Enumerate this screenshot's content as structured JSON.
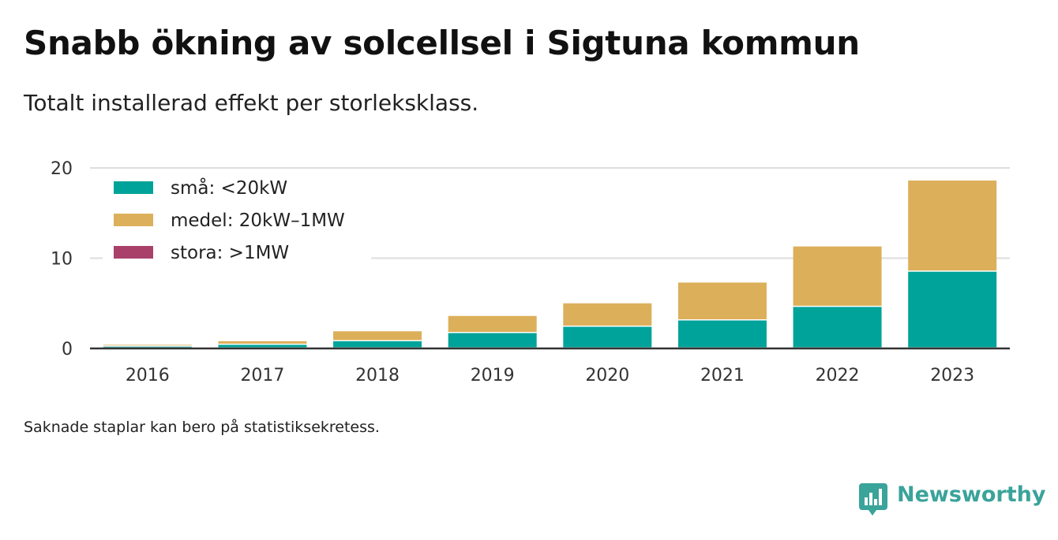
{
  "header": {
    "title": "Snabb ökning av solcellsel i Sigtuna kommun",
    "subtitle": "Totalt installerad effekt per storleksklass."
  },
  "footer": {
    "note": "Saknade staplar kan bero på statistiksekretess.",
    "brand": "Newsworthy"
  },
  "colors": {
    "small": "#00a39a",
    "medium": "#dcaf5a",
    "large": "#a8406a",
    "grid": "#dddddd",
    "axis": "#333333",
    "brand": "#3aa39a"
  },
  "icons": {
    "brand": "newsworthy-logo-icon"
  },
  "chart_data": {
    "type": "bar",
    "stacked": true,
    "title": "Snabb ökning av solcellsel i Sigtuna kommun",
    "subtitle": "Totalt installerad effekt per storleksklass.",
    "xlabel": "",
    "ylabel": "",
    "categories": [
      "2016",
      "2017",
      "2018",
      "2019",
      "2020",
      "2021",
      "2022",
      "2023"
    ],
    "ylim": [
      0,
      20
    ],
    "yticks": [
      0,
      10,
      20
    ],
    "grid": true,
    "legend_position": "top-left",
    "series": [
      {
        "name": "små: <20kW",
        "color": "#00a39a",
        "values": [
          0.2,
          0.4,
          0.8,
          1.7,
          2.4,
          3.1,
          4.6,
          8.5
        ]
      },
      {
        "name": "medel: 20kW–1MW",
        "color": "#dcaf5a",
        "values": [
          0.2,
          0.4,
          1.1,
          1.9,
          2.6,
          4.2,
          6.7,
          10.1
        ]
      },
      {
        "name": "stora: >1MW",
        "color": "#a8406a",
        "values": [
          0,
          0,
          0,
          0,
          0,
          0,
          0,
          0
        ]
      }
    ]
  }
}
